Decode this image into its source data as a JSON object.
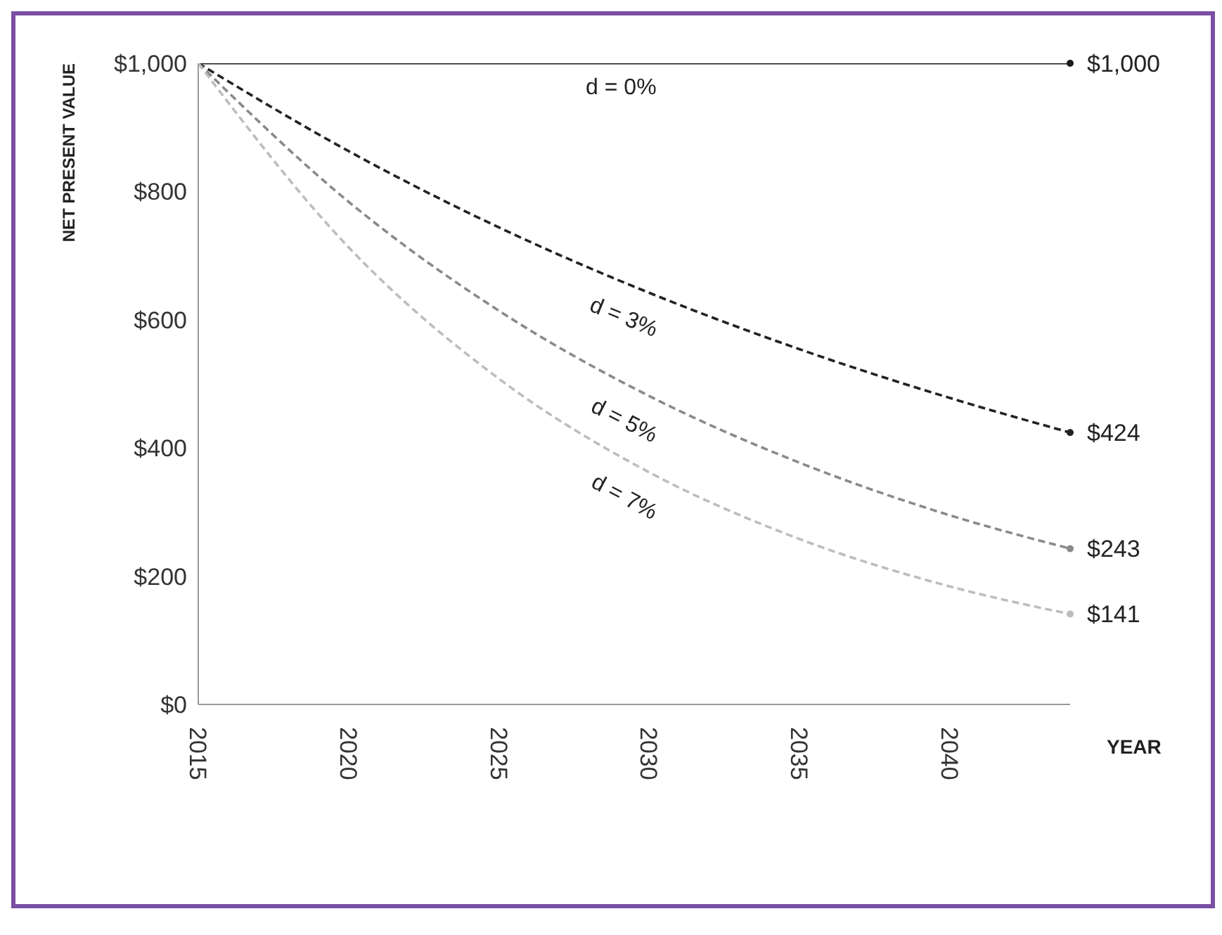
{
  "chart_data": {
    "type": "line",
    "xlabel": "YEAR",
    "ylabel": "NET PRESENT VALUE",
    "x": [
      2015,
      2020,
      2025,
      2030,
      2035,
      2040,
      2044
    ],
    "xlim": [
      2015,
      2044
    ],
    "xticks": [
      2015,
      2020,
      2025,
      2030,
      2035,
      2040
    ],
    "ylim": [
      0,
      1000
    ],
    "yticks": [
      {
        "value": 0,
        "label": "$0"
      },
      {
        "value": 200,
        "label": "$200"
      },
      {
        "value": 400,
        "label": "$400"
      },
      {
        "value": 600,
        "label": "$600"
      },
      {
        "value": 800,
        "label": "$800"
      },
      {
        "value": 1000,
        "label": "$1,000"
      }
    ],
    "grid": false,
    "legend": false,
    "series": [
      {
        "name": "d = 0%",
        "color": "#1a1a1a",
        "line_style": "solid",
        "values": [
          1000,
          1000,
          1000,
          1000,
          1000,
          1000,
          1000
        ],
        "value_labels": [
          null,
          null,
          null,
          null,
          null,
          null,
          "$1,000"
        ]
      },
      {
        "name": "d = 3%",
        "color": "#222222",
        "line_style": "dashed",
        "values": [
          1000,
          863,
          744,
          642,
          554,
          478,
          424
        ],
        "value_labels": [
          null,
          null,
          null,
          null,
          null,
          null,
          "$424"
        ]
      },
      {
        "name": "d = 5%",
        "color": "#8a8a8a",
        "line_style": "dashed",
        "values": [
          1000,
          784,
          614,
          481,
          377,
          295,
          243
        ],
        "value_labels": [
          null,
          null,
          null,
          null,
          null,
          null,
          "$243"
        ]
      },
      {
        "name": "d = 7%",
        "color": "#bdbdbd",
        "line_style": "dashed",
        "values": [
          1000,
          713,
          508,
          362,
          258,
          184,
          141
        ],
        "value_labels": [
          null,
          null,
          null,
          null,
          null,
          null,
          "$141"
        ]
      }
    ]
  }
}
